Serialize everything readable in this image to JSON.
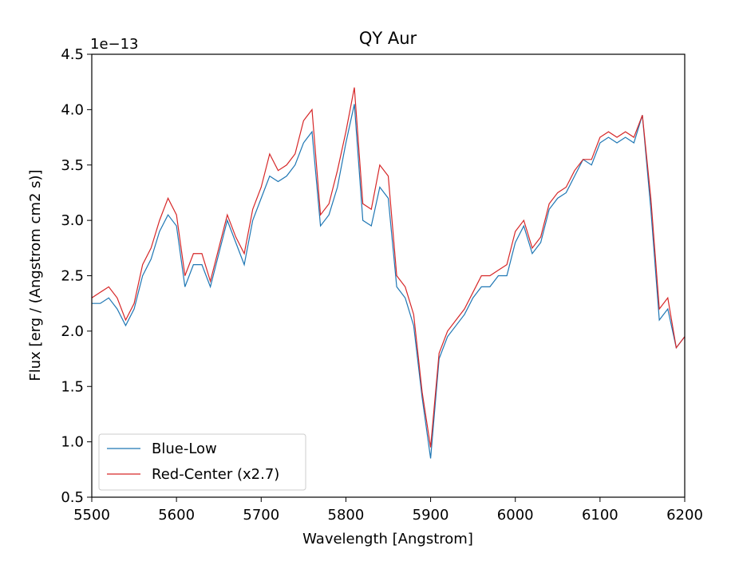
{
  "chart_data": {
    "type": "line",
    "title": "QY Aur",
    "x_label": "Wavelength [Angstrom]",
    "y_label": "Flux [erg / (Angstrom cm2 s)]",
    "y_offset_label": "1e−13",
    "x": [
      5500,
      5510,
      5520,
      5530,
      5540,
      5550,
      5560,
      5570,
      5580,
      5590,
      5600,
      5610,
      5620,
      5630,
      5640,
      5650,
      5660,
      5670,
      5680,
      5690,
      5700,
      5710,
      5720,
      5730,
      5740,
      5750,
      5760,
      5770,
      5780,
      5790,
      5800,
      5810,
      5820,
      5830,
      5840,
      5850,
      5860,
      5870,
      5880,
      5890,
      5900,
      5910,
      5920,
      5930,
      5940,
      5950,
      5960,
      5970,
      5980,
      5990,
      6000,
      6010,
      6020,
      6030,
      6040,
      6050,
      6060,
      6070,
      6080,
      6090,
      6100,
      6110,
      6120,
      6130,
      6140,
      6150,
      6160,
      6170,
      6180,
      6190,
      6200
    ],
    "series": [
      {
        "name": "Blue-Low",
        "color": "#1f77b4",
        "values": [
          2.25,
          2.25,
          2.3,
          2.2,
          2.05,
          2.2,
          2.5,
          2.65,
          2.9,
          3.05,
          2.95,
          2.4,
          2.6,
          2.6,
          2.4,
          2.7,
          3.0,
          2.8,
          2.6,
          3.0,
          3.2,
          3.4,
          3.35,
          3.4,
          3.5,
          3.7,
          3.8,
          2.95,
          3.05,
          3.3,
          3.7,
          4.05,
          3.0,
          2.95,
          3.3,
          3.2,
          2.4,
          2.3,
          2.05,
          1.4,
          0.85,
          1.75,
          1.95,
          2.05,
          2.15,
          2.3,
          2.4,
          2.4,
          2.5,
          2.5,
          2.8,
          2.95,
          2.7,
          2.8,
          3.1,
          3.2,
          3.25,
          3.4,
          3.55,
          3.5,
          3.7,
          3.75,
          3.7,
          3.75,
          3.7,
          3.95,
          3.1,
          2.1,
          2.2,
          1.85,
          1.95
        ]
      },
      {
        "name": "Red-Center (x2.7)",
        "color": "#d62728",
        "values": [
          2.3,
          2.35,
          2.4,
          2.3,
          2.1,
          2.25,
          2.6,
          2.75,
          3.0,
          3.2,
          3.05,
          2.5,
          2.7,
          2.7,
          2.45,
          2.75,
          3.05,
          2.85,
          2.7,
          3.1,
          3.3,
          3.6,
          3.45,
          3.5,
          3.6,
          3.9,
          4.0,
          3.05,
          3.15,
          3.45,
          3.8,
          4.2,
          3.15,
          3.1,
          3.5,
          3.4,
          2.5,
          2.4,
          2.15,
          1.45,
          0.95,
          1.8,
          2.0,
          2.1,
          2.2,
          2.35,
          2.5,
          2.5,
          2.55,
          2.6,
          2.9,
          3.0,
          2.75,
          2.85,
          3.15,
          3.25,
          3.3,
          3.45,
          3.55,
          3.55,
          3.75,
          3.8,
          3.75,
          3.8,
          3.75,
          3.95,
          3.2,
          2.2,
          2.3,
          1.85,
          1.95
        ]
      }
    ],
    "xlim": [
      5500,
      6200
    ],
    "xticks": [
      5500,
      5600,
      5700,
      5800,
      5900,
      6000,
      6100,
      6200
    ],
    "ylim": [
      0.5,
      4.5
    ],
    "yticks": [
      0.5,
      {
        "value": 1,
        "label": "1.0"
      },
      1.5,
      {
        "value": 2,
        "label": "2.0"
      },
      2.5,
      {
        "value": 3,
        "label": "3.0"
      },
      3.5,
      {
        "value": 4,
        "label": "4.0"
      },
      4.5
    ],
    "legend": "lower left"
  }
}
